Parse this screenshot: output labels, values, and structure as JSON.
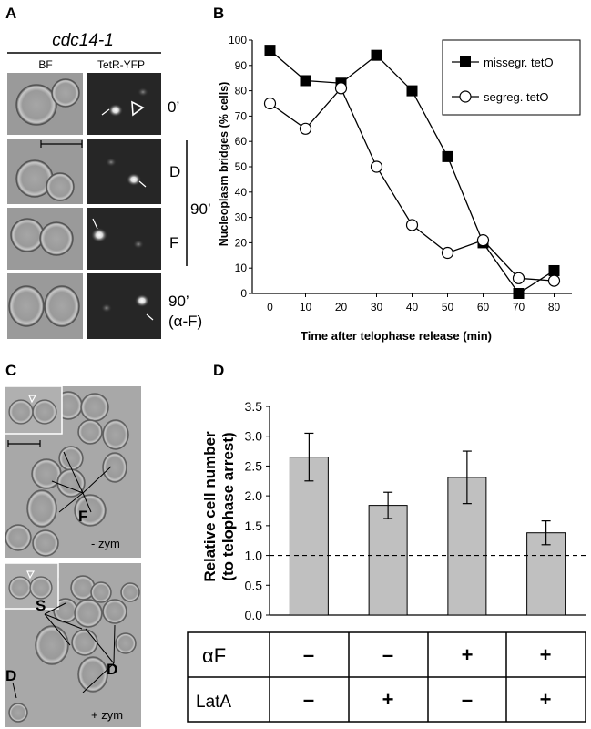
{
  "panel_a": {
    "letter": "A",
    "strain": "cdc14-1",
    "col_bf": "BF",
    "col_yfp": "TetR-YFP",
    "time_0": "0’",
    "label_d": "D",
    "time_90": "90’",
    "label_f": "F",
    "time_90_af_1": "90’",
    "time_90_af_2": "(α-F)"
  },
  "panel_b": {
    "letter": "B",
    "chart_data": {
      "type": "line",
      "xlabel": "Time after telophase release (min)",
      "ylabel": "Nucleoplasm bridges (% cells)",
      "xlim": [
        -5,
        85
      ],
      "ylim": [
        0,
        100
      ],
      "x_ticks": [
        "0",
        "10",
        "20",
        "30",
        "40",
        "50",
        "60",
        "70",
        "80"
      ],
      "y_ticks": [
        "0",
        "10",
        "20",
        "30",
        "40",
        "50",
        "60",
        "70",
        "80",
        "90",
        "100"
      ],
      "legend_position": "top-right",
      "x": [
        0,
        10,
        20,
        30,
        40,
        50,
        60,
        70,
        80
      ],
      "series": [
        {
          "name": "missegr. tetO",
          "marker": "filled-square",
          "values": [
            96,
            84,
            83,
            94,
            80,
            54,
            20,
            0,
            9
          ]
        },
        {
          "name": "segreg. tetO",
          "marker": "open-circle",
          "values": [
            75,
            65,
            81,
            50,
            27,
            16,
            21,
            6,
            5
          ]
        }
      ]
    }
  },
  "panel_c": {
    "letter": "C",
    "label_f": "F",
    "minus_zym": "- zym",
    "label_s": "S",
    "label_d1": "D",
    "label_d2": "D",
    "plus_zym": "+ zym"
  },
  "panel_d": {
    "letter": "D",
    "chart_data": {
      "type": "bar",
      "ylabel_line1": "Relative cell number",
      "ylabel_line2": "(to telophase arrest)",
      "ylim": [
        0,
        3.5
      ],
      "y_ticks": [
        "0.0",
        "0.5",
        "1.0",
        "1.5",
        "2.0",
        "2.5",
        "3.0",
        "3.5"
      ],
      "values": [
        2.65,
        1.84,
        2.31,
        1.38
      ],
      "errors": [
        0.4,
        0.22,
        0.44,
        0.2
      ],
      "reference_line": 1.0,
      "bar_color": "#c0c0c0"
    },
    "table": {
      "row1_label": "αF",
      "row1_values": [
        "–",
        "–",
        "+",
        "+"
      ],
      "row2_label": "LatA",
      "row2_values": [
        "–",
        "+",
        "–",
        "+"
      ]
    }
  }
}
